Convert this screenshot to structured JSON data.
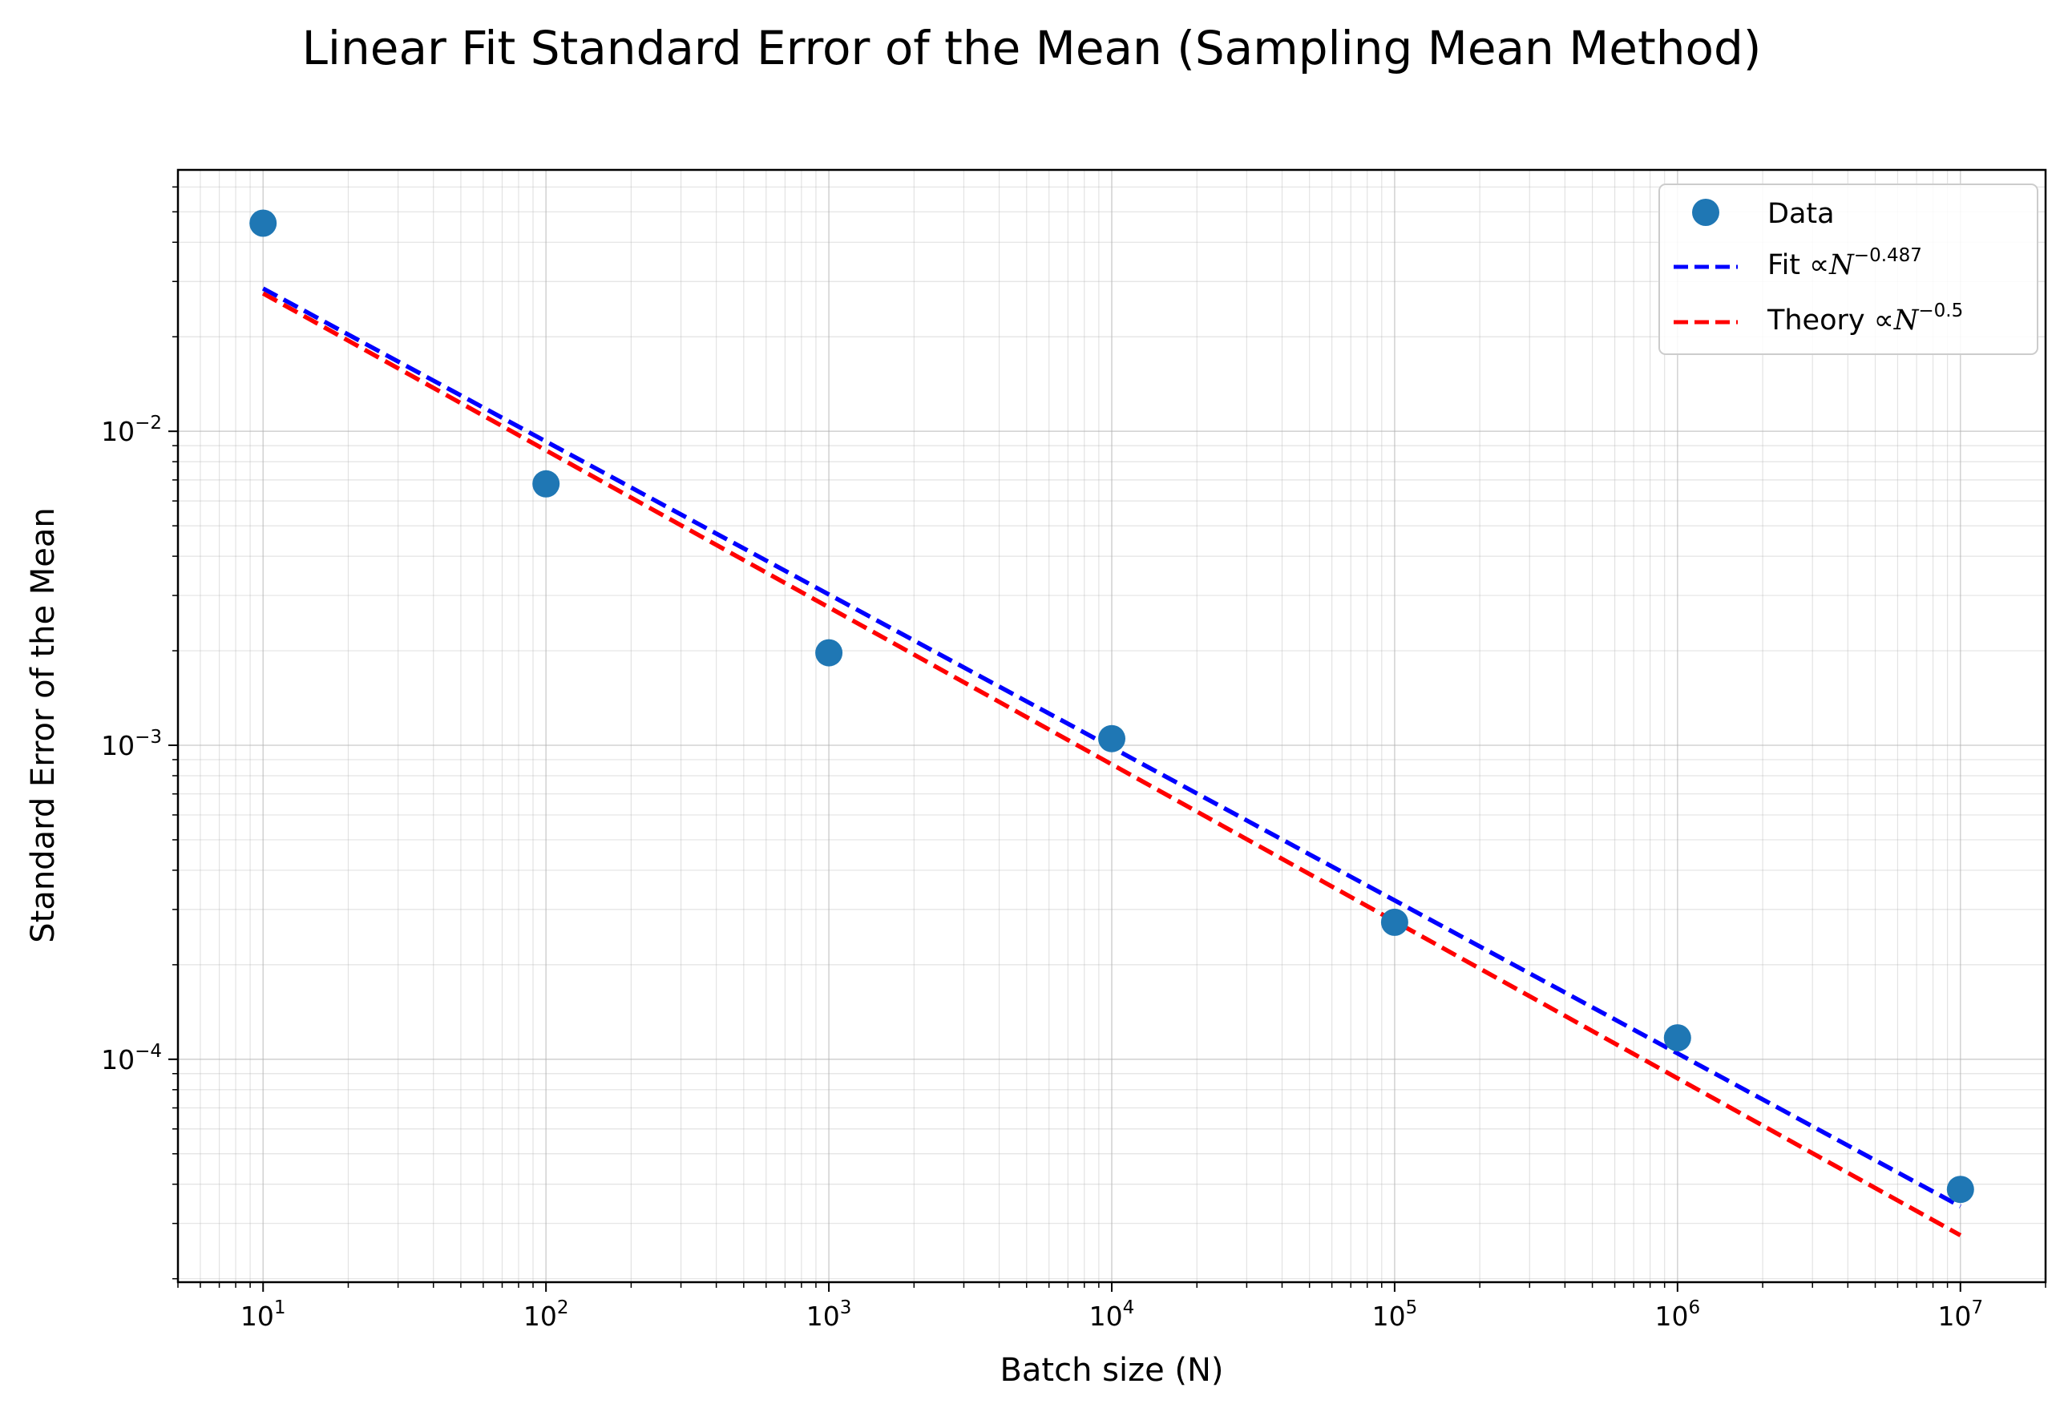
{
  "chart_data": {
    "type": "scatter",
    "title": "Linear Fit Standard Error of the Mean (Sampling Mean Method)",
    "xlabel": "Batch size (N)",
    "ylabel": "Standard Error of the Mean",
    "xscale": "log",
    "yscale": "log",
    "xlim": [
      5,
      20000000
    ],
    "ylim": [
      1.95e-05,
      0.068
    ],
    "grid": true,
    "grid_which": "both",
    "legend_position": "top-right",
    "x_ticks": [
      {
        "base": "10",
        "exp": "1",
        "value": 10
      },
      {
        "base": "10",
        "exp": "2",
        "value": 100
      },
      {
        "base": "10",
        "exp": "3",
        "value": 1000
      },
      {
        "base": "10",
        "exp": "4",
        "value": 10000
      },
      {
        "base": "10",
        "exp": "5",
        "value": 100000
      },
      {
        "base": "10",
        "exp": "6",
        "value": 1000000
      },
      {
        "base": "10",
        "exp": "7",
        "value": 10000000
      }
    ],
    "y_ticks": [
      {
        "base": "10",
        "exp": "−4",
        "value": 0.0001
      },
      {
        "base": "10",
        "exp": "−3",
        "value": 0.001
      },
      {
        "base": "10",
        "exp": "−2",
        "value": 0.01
      }
    ],
    "series": [
      {
        "name": "Data",
        "kind": "markers",
        "color": "#1f77b4",
        "x": [
          10,
          100,
          1000,
          10000,
          100000,
          1000000,
          10000000
        ],
        "y": [
          0.046,
          0.0068,
          0.00197,
          0.00105,
          0.000273,
          0.000117,
          3.85e-05
        ]
      },
      {
        "name": "Fit ∝N",
        "label_prefix": "Fit  ∝",
        "label_var": "N",
        "label_exp": "−0.487",
        "kind": "dashed-line",
        "color": "#0000ff",
        "x": [
          10,
          10000000
        ],
        "y": [
          0.0285,
          3.4e-05
        ]
      },
      {
        "name": "Theory ∝N",
        "label_prefix": "Theory  ∝",
        "label_var": "N",
        "label_exp": "−0.5",
        "kind": "dashed-line",
        "color": "#ff0000",
        "x": [
          10,
          10000000
        ],
        "y": [
          0.0275,
          2.75e-05
        ]
      }
    ]
  }
}
